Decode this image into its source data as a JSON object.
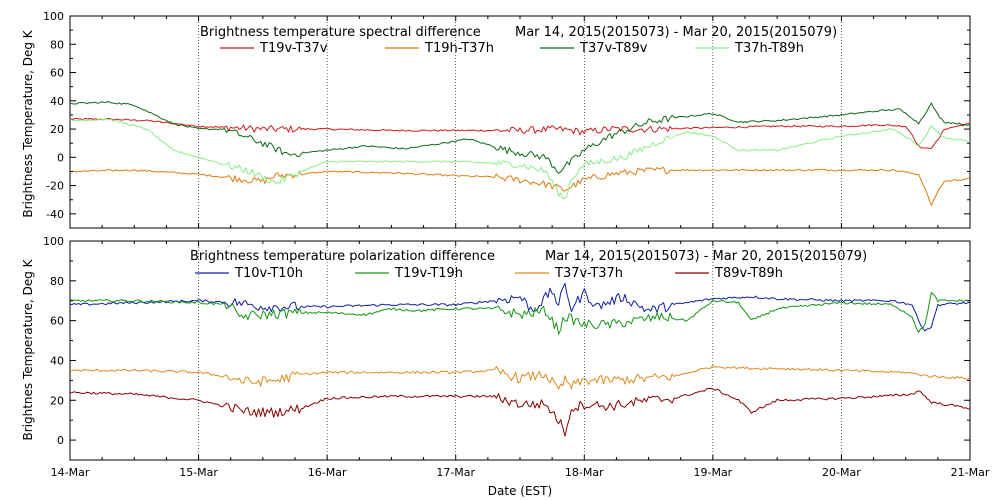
{
  "chart_data": [
    {
      "type": "line",
      "title": "Brightness temperature spectral difference",
      "subtitle": "Mar 14, 2015(2015073) - Mar 20, 2015(2015079)",
      "ylabel": "Brightness Temperature, Deg K",
      "xlabel": "",
      "xlim": [
        0,
        7
      ],
      "ylim": [
        -50,
        100
      ],
      "yticks": [
        "-40",
        "-20",
        "0",
        "20",
        "40",
        "60",
        "80",
        "100"
      ],
      "ytick_values": [
        -40,
        -20,
        0,
        20,
        40,
        60,
        80,
        100
      ],
      "xgrid_days": [
        1,
        2,
        3,
        4,
        5,
        6
      ],
      "series": [
        {
          "name": "T19v-T37v",
          "color": "#d11a1a",
          "x": [
            0,
            0.3,
            0.6,
            1.0,
            1.5,
            2.0,
            2.5,
            3.0,
            3.5,
            3.8,
            4.0,
            4.2,
            4.5,
            5.0,
            5.5,
            6.0,
            6.3,
            6.5,
            6.55,
            6.6,
            6.65,
            6.7,
            6.75,
            6.8,
            7.0
          ],
          "values": [
            27,
            27,
            26,
            22,
            20,
            20,
            19,
            19,
            19,
            20,
            18,
            20,
            20,
            21,
            22,
            22,
            23,
            22,
            16,
            8,
            6,
            7,
            12,
            20,
            24
          ]
        },
        {
          "name": "T19h-T37h",
          "color": "#e07b10",
          "x": [
            0,
            0.5,
            1.0,
            1.3,
            1.5,
            1.6,
            1.8,
            2.0,
            2.5,
            3.0,
            3.3,
            3.5,
            3.7,
            3.85,
            4.0,
            4.2,
            4.4,
            4.6,
            4.8,
            5.0,
            5.5,
            6.0,
            6.4,
            6.6,
            6.65,
            6.7,
            6.75,
            6.8,
            7.0
          ],
          "values": [
            -10,
            -9,
            -12,
            -15,
            -17,
            -13,
            -12,
            -10,
            -11,
            -13,
            -14,
            -16,
            -19,
            -23,
            -16,
            -12,
            -10,
            -9,
            -9,
            -9,
            -9,
            -9,
            -9,
            -12,
            -22,
            -34,
            -24,
            -17,
            -15
          ]
        },
        {
          "name": "T37v-T89v",
          "color": "#0e6b14",
          "x": [
            0,
            0.3,
            0.5,
            0.8,
            1.0,
            1.2,
            1.5,
            1.7,
            2.0,
            2.3,
            2.6,
            2.9,
            3.1,
            3.4,
            3.7,
            3.8,
            3.9,
            4.0,
            4.2,
            4.5,
            4.7,
            5.0,
            5.2,
            5.5,
            6.0,
            6.3,
            6.45,
            6.55,
            6.6,
            6.7,
            6.75,
            6.8,
            7.0
          ],
          "values": [
            38,
            39,
            37,
            24,
            20,
            20,
            10,
            2,
            5,
            8,
            6,
            10,
            13,
            5,
            0,
            -10,
            -3,
            5,
            15,
            25,
            28,
            31,
            25,
            26,
            30,
            33,
            34,
            28,
            24,
            38,
            30,
            25,
            23
          ]
        },
        {
          "name": "T37h-T89h",
          "color": "#88ee88",
          "x": [
            0,
            0.3,
            0.6,
            0.8,
            1.0,
            1.2,
            1.4,
            1.6,
            1.8,
            2.0,
            2.5,
            3.0,
            3.5,
            3.7,
            3.8,
            3.85,
            3.9,
            4.0,
            4.3,
            4.6,
            4.8,
            5.0,
            5.2,
            5.5,
            6.0,
            6.4,
            6.55,
            6.6,
            6.7,
            6.8,
            7.0
          ],
          "values": [
            26,
            27,
            20,
            5,
            0,
            -5,
            -10,
            -18,
            -10,
            -3,
            -3,
            -3,
            -5,
            -10,
            -25,
            -30,
            -15,
            -5,
            0,
            12,
            18,
            15,
            5,
            5,
            15,
            20,
            12,
            8,
            22,
            14,
            11
          ]
        }
      ]
    },
    {
      "type": "line",
      "title": "Brightness temperature polarization difference",
      "subtitle": "Mar 14, 2015(2015073) - Mar 20, 2015(2015079)",
      "ylabel": "Brightnes Temperature, Deg K",
      "xlabel": "Date (EST)",
      "xlim": [
        0,
        7
      ],
      "ylim": [
        -10,
        100
      ],
      "yticks": [
        "0",
        "20",
        "40",
        "60",
        "80",
        "100"
      ],
      "ytick_values": [
        0,
        20,
        40,
        60,
        80,
        100
      ],
      "xticks": [
        "14-Mar",
        "15-Mar",
        "16-Mar",
        "17-Mar",
        "18-Mar",
        "19-Mar",
        "20-Mar",
        "21-Mar"
      ],
      "xtick_values": [
        0,
        1,
        2,
        3,
        4,
        5,
        6,
        7
      ],
      "xgrid_days": [
        1,
        2,
        3,
        4,
        5,
        6
      ],
      "series": [
        {
          "name": "T10v-T10h",
          "color": "#1020a0",
          "x": [
            0,
            0.5,
            1.0,
            1.3,
            1.5,
            2.0,
            2.5,
            3.0,
            3.3,
            3.5,
            3.6,
            3.75,
            3.8,
            3.85,
            3.9,
            4.0,
            4.1,
            4.3,
            4.5,
            4.7,
            5.0,
            5.3,
            5.5,
            6.0,
            6.4,
            6.55,
            6.6,
            6.65,
            6.7,
            6.75,
            7.0
          ],
          "values": [
            68,
            69,
            70,
            69,
            67,
            67,
            68,
            68,
            70,
            72,
            65,
            75,
            68,
            78,
            66,
            74,
            67,
            72,
            65,
            68,
            71,
            72,
            71,
            70,
            70,
            68,
            60,
            55,
            57,
            68,
            69
          ]
        },
        {
          "name": "T19v-T19h",
          "color": "#149614",
          "x": [
            0,
            0.5,
            1.0,
            1.25,
            1.3,
            1.5,
            1.8,
            2.0,
            2.3,
            2.5,
            2.7,
            3.0,
            3.3,
            3.5,
            3.7,
            3.8,
            3.85,
            4.0,
            4.2,
            4.4,
            4.6,
            4.8,
            5.0,
            5.2,
            5.3,
            5.5,
            6.0,
            6.4,
            6.55,
            6.6,
            6.65,
            6.7,
            6.75,
            7.0
          ],
          "values": [
            70,
            70,
            69,
            68,
            62,
            63,
            64,
            64,
            63,
            66,
            65,
            66,
            66,
            63,
            65,
            55,
            62,
            58,
            58,
            60,
            62,
            60,
            70,
            69,
            60,
            66,
            69,
            68,
            62,
            54,
            58,
            74,
            70,
            70
          ]
        },
        {
          "name": "T37v-T37h",
          "color": "#e08a1e",
          "x": [
            0,
            0.5,
            1.0,
            1.2,
            1.4,
            1.6,
            1.8,
            2.0,
            2.5,
            3.0,
            3.3,
            3.5,
            3.7,
            3.8,
            3.85,
            3.9,
            4.0,
            4.2,
            4.5,
            4.7,
            5.0,
            5.3,
            5.5,
            6.0,
            6.5,
            6.7,
            7.0
          ],
          "values": [
            35,
            35,
            34,
            32,
            29,
            30,
            33,
            34,
            34,
            34,
            35,
            31,
            33,
            25,
            30,
            27,
            30,
            30,
            31,
            32,
            37,
            36,
            36,
            35,
            34,
            32,
            31
          ]
        },
        {
          "name": "T89v-T89h",
          "color": "#8b0000",
          "x": [
            0,
            0.5,
            1.0,
            1.2,
            1.4,
            1.6,
            1.8,
            2.0,
            2.5,
            3.0,
            3.3,
            3.5,
            3.7,
            3.8,
            3.85,
            3.9,
            4.0,
            4.2,
            4.5,
            4.7,
            5.0,
            5.2,
            5.3,
            5.5,
            6.0,
            6.3,
            6.55,
            6.6,
            6.7,
            7.0
          ],
          "values": [
            24,
            23,
            20,
            17,
            14,
            14,
            16,
            21,
            22,
            22,
            22,
            18,
            18,
            10,
            4,
            16,
            18,
            17,
            20,
            21,
            26,
            20,
            14,
            20,
            21,
            22,
            23,
            25,
            19,
            16
          ]
        }
      ]
    }
  ]
}
